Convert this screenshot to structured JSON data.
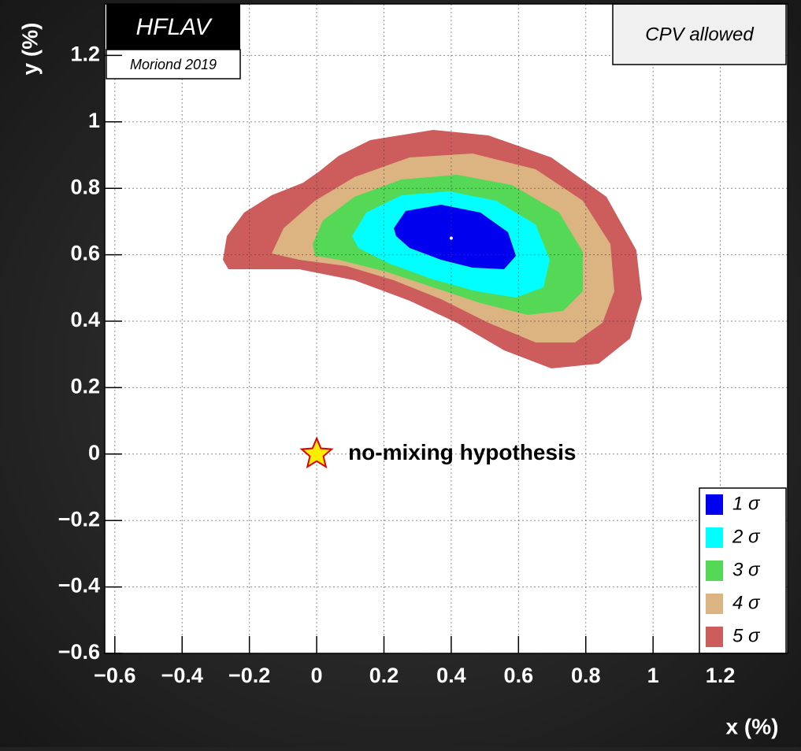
{
  "chart_data": {
    "type": "contour",
    "annotations": {
      "collab": "HFLAV",
      "conference": "Moriond 2019",
      "fit": "CPV allowed"
    },
    "xlabel": "x (%)",
    "ylabel": "y (%)",
    "xlim": [
      -0.63,
      1.4
    ],
    "ylim": [
      -0.6,
      1.355
    ],
    "xticks": [
      {
        "value": -0.6,
        "label": "−0.6"
      },
      {
        "value": -0.4,
        "label": "−0.4"
      },
      {
        "value": -0.2,
        "label": "−0.2"
      },
      0,
      0.2,
      0.4,
      0.6,
      0.8,
      1,
      1.2
    ],
    "yticks": [
      {
        "value": -0.6,
        "label": "−0.6"
      },
      {
        "value": -0.4,
        "label": "−0.4"
      },
      {
        "value": -0.2,
        "label": "−0.2"
      },
      0,
      0.2,
      0.4,
      0.6,
      0.8,
      1,
      1.2
    ],
    "grid": true,
    "series": [
      {
        "name": "1 σ",
        "color": "#0000ee"
      },
      {
        "name": "2 σ",
        "color": "#00ffff"
      },
      {
        "name": "3 σ",
        "color": "#55d855"
      },
      {
        "name": "4 σ",
        "color": "#dcb482"
      },
      {
        "name": "5 σ",
        "color": "#cd5c5c"
      }
    ],
    "markers": [
      {
        "label": "no-mixing hypothesis",
        "x": 0,
        "y": 0,
        "color": "#ffee00"
      },
      {
        "x": 0.4,
        "y": 0.65,
        "color": "#ffffff"
      }
    ]
  }
}
